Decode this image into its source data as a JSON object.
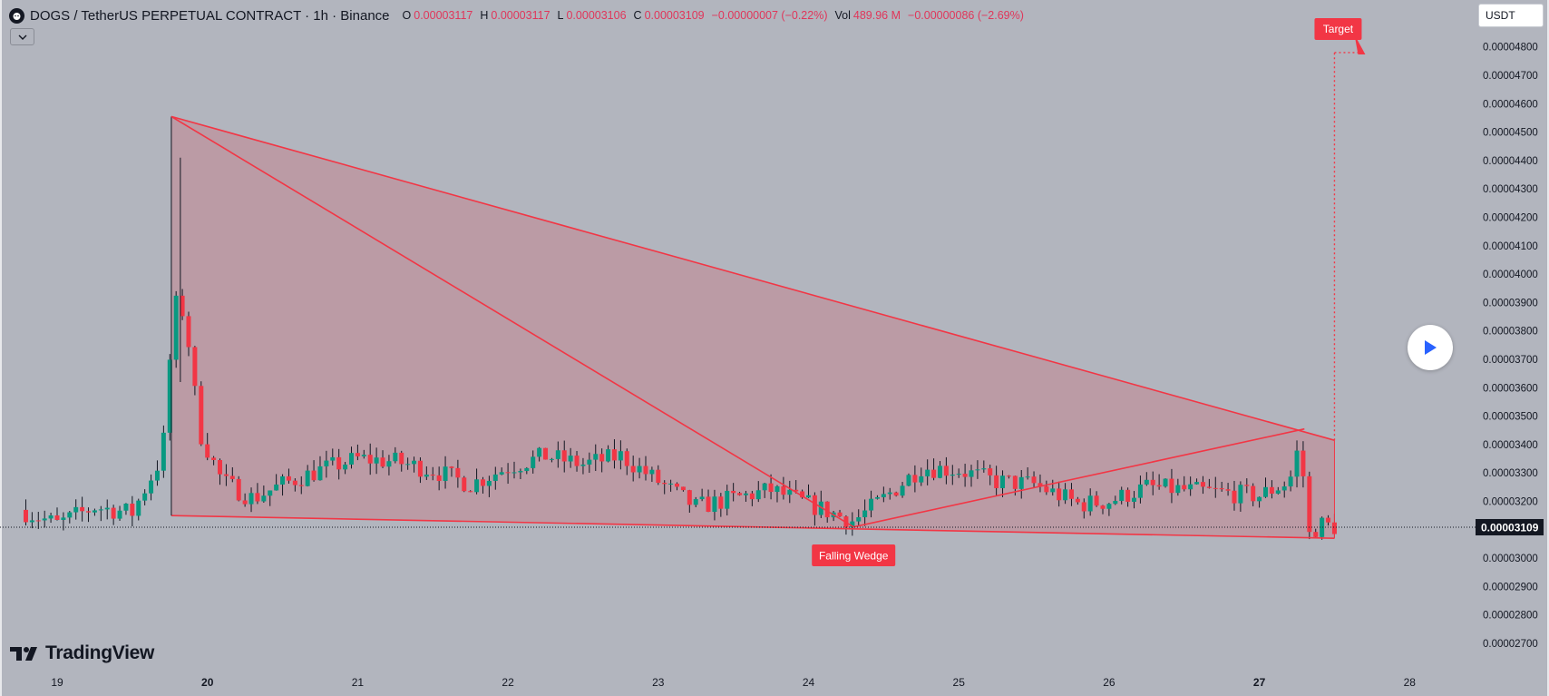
{
  "header": {
    "symbol": "DOGS",
    "pair_text": "DOGS / TetherUS PERPETUAL CONTRACT · 1h · Binance",
    "open_key": "O",
    "open": "0.00003117",
    "high_key": "H",
    "high": "0.00003117",
    "low_key": "L",
    "low": "0.00003106",
    "close_key": "C",
    "close": "0.00003109",
    "change": "−0.00000007 (−0.22%)",
    "vol_key": "Vol",
    "vol": "489.96 M",
    "vol_change": "−0.00000086 (−2.69%)"
  },
  "currency": "USDT",
  "brand": "TradingView",
  "colors": {
    "background": "#b2b5be",
    "up": "#089981",
    "down": "#f23645",
    "pattern_line": "#f23645",
    "pattern_fill": "#c2858f",
    "badge": "#f23645"
  },
  "icons": [
    "dogs-symbol-icon",
    "chevron-down-icon",
    "play-icon",
    "tradingview-logo-icon"
  ],
  "chart_data": {
    "type": "candlestick",
    "timeframe": "1h",
    "x_ticks": [
      "19",
      "20",
      "21",
      "22",
      "23",
      "24",
      "25",
      "26",
      "27",
      "28"
    ],
    "y_ticks": [
      "0.00004800",
      "0.00004700",
      "0.00004600",
      "0.00004500",
      "0.00004400",
      "0.00004300",
      "0.00004200",
      "0.00004100",
      "0.00004000",
      "0.00003900",
      "0.00003800",
      "0.00003700",
      "0.00003600",
      "0.00003500",
      "0.00003400",
      "0.00003300",
      "0.00003200",
      "0.00003000",
      "0.00002900",
      "0.00002800",
      "0.00002700"
    ],
    "y_range": [
      2.65e-05,
      4.88e-05
    ],
    "last_price": "0.00003109",
    "annotations": {
      "pattern_label": "Falling Wedge",
      "target_label": "Target"
    },
    "wedge_points": {
      "upper_start": {
        "day": 19.76,
        "price": 4.555e-05
      },
      "upper_end": {
        "day": 27.5,
        "price": 3.415e-05
      },
      "lower_start": {
        "day": 19.76,
        "price": 3.15e-05
      },
      "lower_end": {
        "day": 27.5,
        "price": 3.07e-05
      },
      "inner_from": {
        "day": 19.76,
        "price": 4.555e-05
      },
      "inner_low": {
        "day": 24.3,
        "price": 3.11e-05
      },
      "inner_to": {
        "day": 27.3,
        "price": 3.455e-05
      },
      "target_price": 4.78e-05
    },
    "price_path": [
      {
        "day": 18.75,
        "price": 3.17e-05
      },
      {
        "day": 19.0,
        "price": 3.12e-05
      },
      {
        "day": 19.25,
        "price": 3.18e-05
      },
      {
        "day": 19.5,
        "price": 3.16e-05
      },
      {
        "day": 19.7,
        "price": 3.36e-05
      },
      {
        "day": 19.78,
        "price": 3.9e-05
      },
      {
        "day": 19.85,
        "price": 3.86e-05
      },
      {
        "day": 19.95,
        "price": 3.44e-05
      },
      {
        "day": 20.1,
        "price": 3.27e-05
      },
      {
        "day": 20.3,
        "price": 3.21e-05
      },
      {
        "day": 20.5,
        "price": 3.26e-05
      },
      {
        "day": 20.75,
        "price": 3.31e-05
      },
      {
        "day": 21.0,
        "price": 3.35e-05
      },
      {
        "day": 21.25,
        "price": 3.34e-05
      },
      {
        "day": 21.5,
        "price": 3.31e-05
      },
      {
        "day": 21.75,
        "price": 3.26e-05
      },
      {
        "day": 22.0,
        "price": 3.32e-05
      },
      {
        "day": 22.25,
        "price": 3.36e-05
      },
      {
        "day": 22.5,
        "price": 3.33e-05
      },
      {
        "day": 22.75,
        "price": 3.36e-05
      },
      {
        "day": 23.0,
        "price": 3.27e-05
      },
      {
        "day": 23.25,
        "price": 3.18e-05
      },
      {
        "day": 23.5,
        "price": 3.21e-05
      },
      {
        "day": 23.75,
        "price": 3.24e-05
      },
      {
        "day": 24.0,
        "price": 3.19e-05
      },
      {
        "day": 24.3,
        "price": 3.13e-05
      },
      {
        "day": 24.5,
        "price": 3.21e-05
      },
      {
        "day": 24.75,
        "price": 3.32e-05
      },
      {
        "day": 25.0,
        "price": 3.31e-05
      },
      {
        "day": 25.25,
        "price": 3.27e-05
      },
      {
        "day": 25.5,
        "price": 3.26e-05
      },
      {
        "day": 25.8,
        "price": 3.19e-05
      },
      {
        "day": 26.0,
        "price": 3.2e-05
      },
      {
        "day": 26.25,
        "price": 3.25e-05
      },
      {
        "day": 26.5,
        "price": 3.24e-05
      },
      {
        "day": 26.75,
        "price": 3.23e-05
      },
      {
        "day": 27.0,
        "price": 3.22e-05
      },
      {
        "day": 27.2,
        "price": 3.27e-05
      },
      {
        "day": 27.27,
        "price": 3.41e-05
      },
      {
        "day": 27.33,
        "price": 3.08e-05
      },
      {
        "day": 27.4,
        "price": 3.12e-05
      },
      {
        "day": 27.5,
        "price": 3.11e-05
      }
    ]
  }
}
